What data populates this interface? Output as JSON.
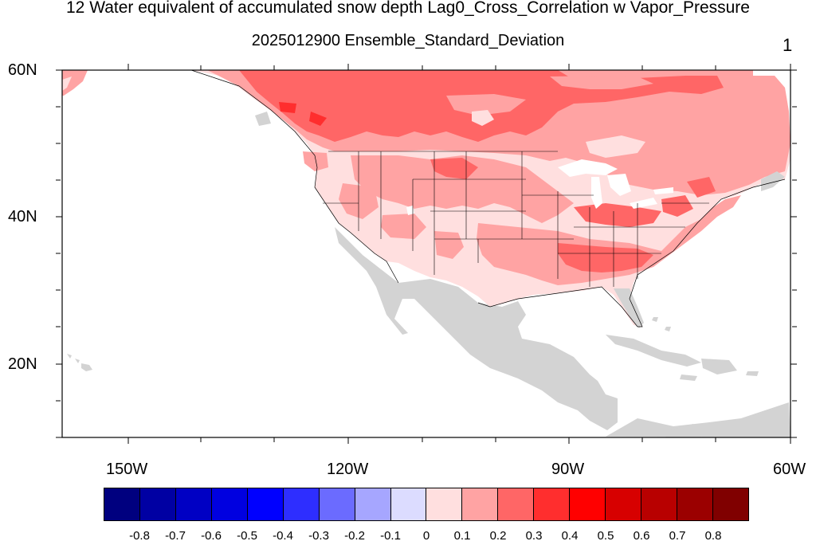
{
  "title": "12 Water equivalent of accumulated snow depth Lag0_Cross_Correlation w Vapor_Pressure",
  "subtitle": "2025012900 Ensemble_Standard_Deviation",
  "panel_number": "1",
  "map": {
    "lat_labels": [
      "60N",
      "40N",
      "20N"
    ],
    "lon_labels": [
      "150W",
      "120W",
      "90W",
      "60W"
    ],
    "missing_color": "#d3d3d3",
    "ocean_color": "#ffffff"
  },
  "colorbar": {
    "colors": [
      "#00007f",
      "#0000a3",
      "#0000c4",
      "#0000e0",
      "#0000ff",
      "#2e2eff",
      "#6b6bff",
      "#a6a6ff",
      "#dcdcff",
      "#ffdfdf",
      "#ffa3a3",
      "#ff6666",
      "#ff2e2e",
      "#ff0000",
      "#d70000",
      "#b80000",
      "#9b0000",
      "#800000"
    ],
    "labels": [
      "-0.8",
      "-0.7",
      "-0.6",
      "-0.5",
      "-0.4",
      "-0.3",
      "-0.2",
      "-0.1",
      "0",
      "0.1",
      "0.2",
      "0.3",
      "0.4",
      "0.5",
      "0.6",
      "0.7",
      "0.8"
    ]
  }
}
